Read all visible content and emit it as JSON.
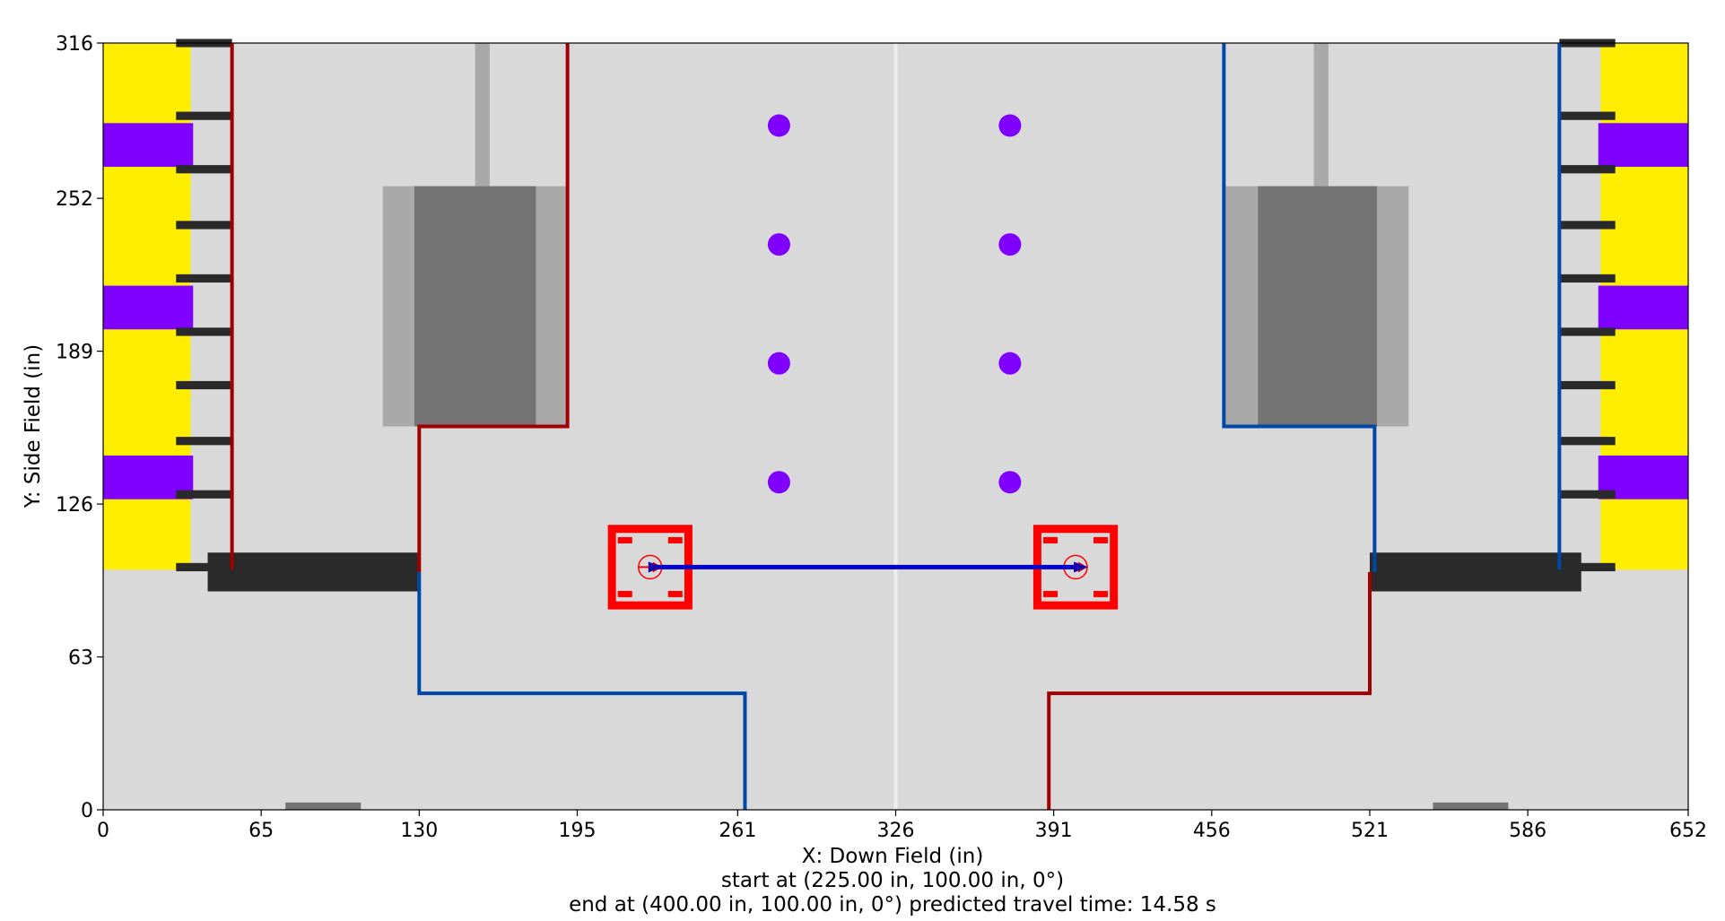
{
  "chart_data": {
    "type": "scatter",
    "title": "",
    "xlabel": "X: Down Field (in)",
    "ylabel": "Y: Side Field (in)",
    "xlim": [
      0,
      652
    ],
    "ylim": [
      0,
      316
    ],
    "x_ticks": [
      0,
      65,
      130,
      195,
      261,
      326,
      391,
      456,
      521,
      586,
      652
    ],
    "y_ticks": [
      0,
      63,
      126,
      189,
      252,
      316
    ],
    "grid": false,
    "captions": [
      "start at (225.00 in, 100.00 in, 0°)",
      "end at (400.00 in, 100.00 in, 0°) predicted travel time: 14.58 s"
    ],
    "game_pieces": {
      "color": "#7f00ff",
      "x": [
        278,
        278,
        278,
        278,
        373,
        373,
        373,
        373
      ],
      "y": [
        282,
        233,
        184,
        135,
        282,
        233,
        184,
        135
      ]
    },
    "path": {
      "color": "#0000cc",
      "x": [
        225,
        400
      ],
      "y": [
        100,
        100
      ]
    },
    "robot_start": {
      "x": 225,
      "y": 100,
      "heading_deg": 0
    },
    "robot_end": {
      "x": 400,
      "y": 100,
      "heading_deg": 0
    },
    "robot_color": "#ff0000",
    "red_boundaries": [
      {
        "x": [
          53,
          53
        ],
        "y": [
          316,
          99
        ]
      },
      {
        "x": [
          191,
          191,
          130,
          130
        ],
        "y": [
          316,
          158,
          158,
          98
        ]
      },
      {
        "x": [
          521,
          521,
          389,
          389
        ],
        "y": [
          98,
          48,
          48,
          0
        ]
      }
    ],
    "blue_boundaries": [
      {
        "x": [
          599,
          599
        ],
        "y": [
          316,
          99
        ]
      },
      {
        "x": [
          461,
          461,
          523,
          523
        ],
        "y": [
          316,
          158,
          158,
          98
        ]
      },
      {
        "x": [
          130,
          130,
          264,
          264
        ],
        "y": [
          98,
          48,
          48,
          0
        ]
      }
    ],
    "colors": {
      "field": "#d9d9d9",
      "yellow_zone": "#ffee00",
      "purple_zone": "#8000ff",
      "bar_dark": "#2a2a2a",
      "station_light": "#a9a9a9",
      "station_dark": "#737373",
      "red_line": "#a00000",
      "blue_line": "#0048a8",
      "center_line": "#eeeeee"
    }
  }
}
